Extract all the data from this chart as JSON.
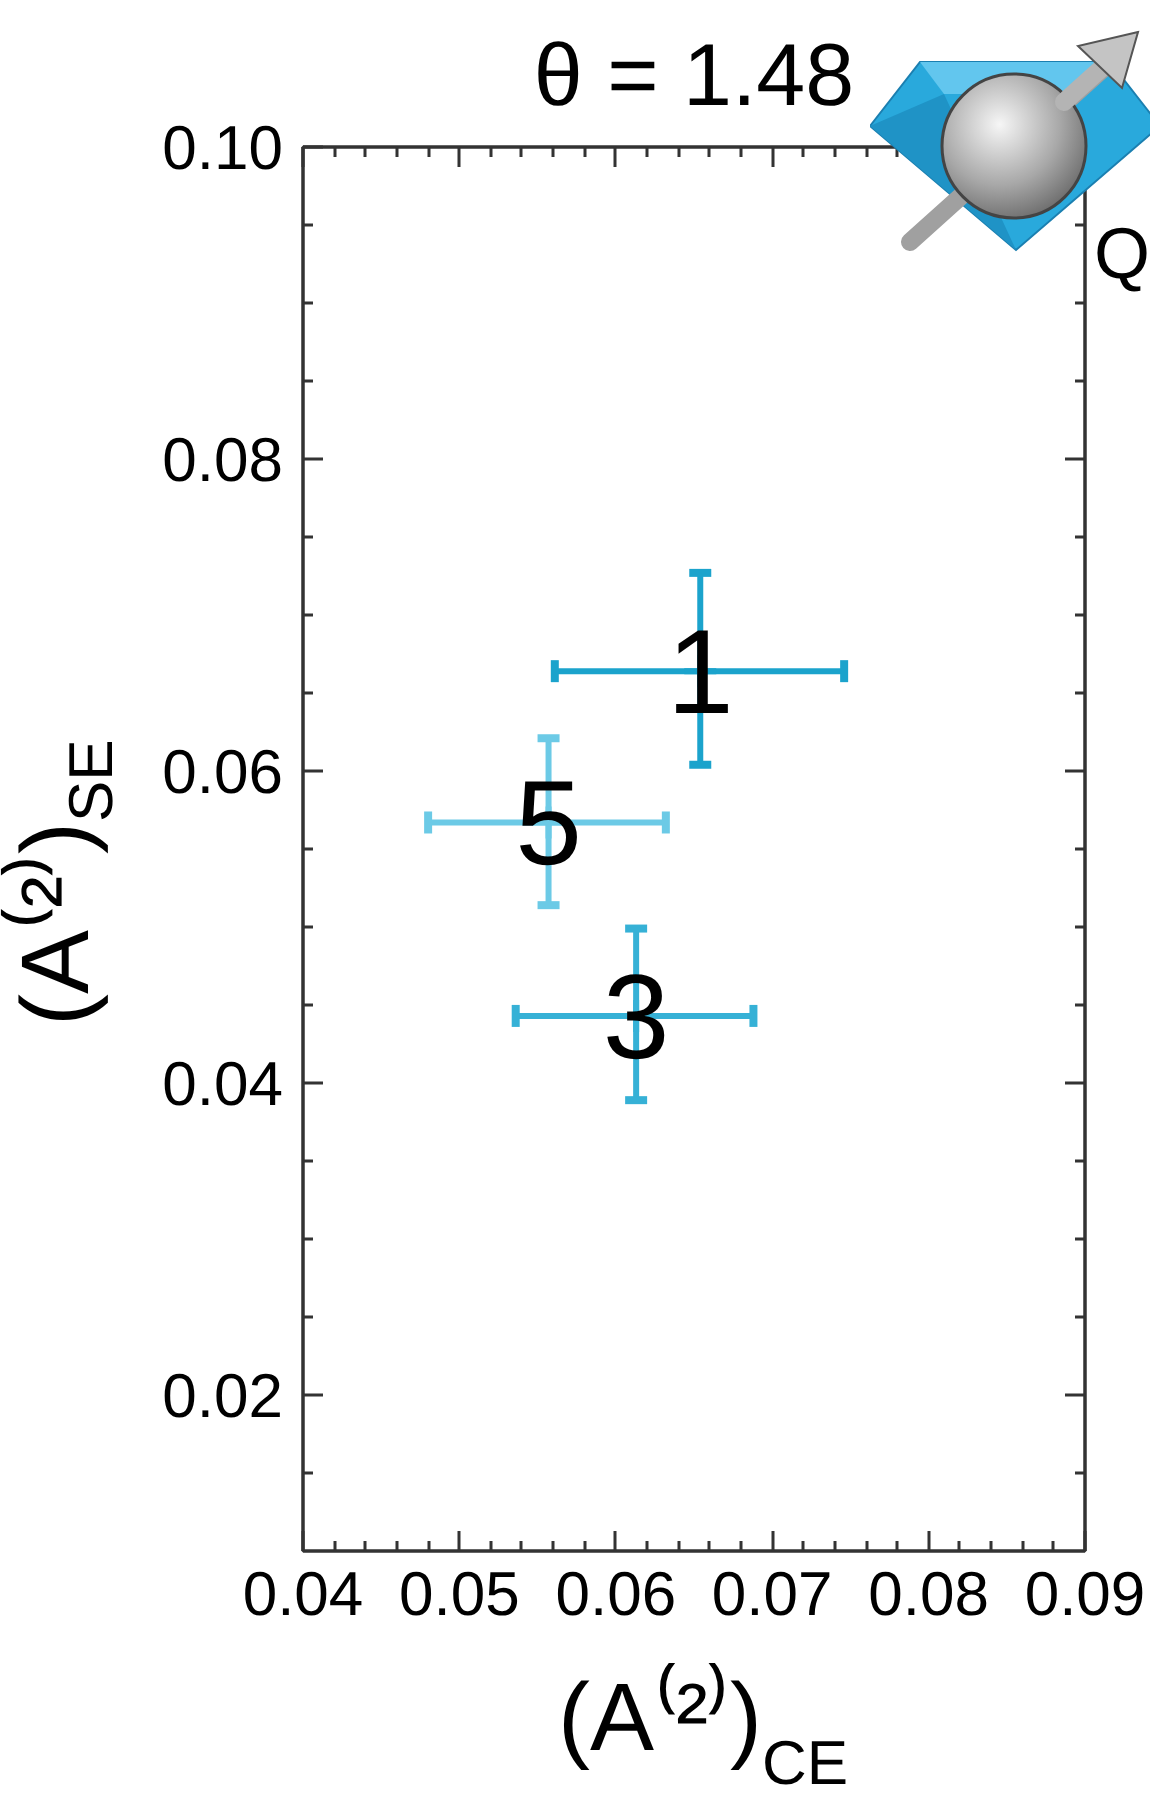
{
  "chart_data": {
    "type": "scatter",
    "title": "θ = 1.48",
    "xlabel": "(A⁽²⁾)$_{CE}$",
    "ylabel": "(A⁽²⁾)$_{SE}$",
    "annotations": [
      "Q"
    ],
    "xlim": [
      0.04,
      0.09
    ],
    "ylim": [
      0.01,
      0.1
    ],
    "xticks": [
      0.04,
      {
        "value": 0.042,
        "label": null
      },
      {
        "value": 0.044,
        "label": null
      },
      {
        "value": 0.046,
        "label": null
      },
      {
        "value": 0.048,
        "label": null
      },
      0.05,
      {
        "value": 0.052,
        "label": null
      },
      {
        "value": 0.054,
        "label": null
      },
      {
        "value": 0.056,
        "label": null
      },
      {
        "value": 0.058,
        "label": null
      },
      0.06,
      {
        "value": 0.062,
        "label": null
      },
      {
        "value": 0.064,
        "label": null
      },
      {
        "value": 0.066,
        "label": null
      },
      {
        "value": 0.068,
        "label": null
      },
      0.07,
      {
        "value": 0.072,
        "label": null
      },
      {
        "value": 0.074,
        "label": null
      },
      {
        "value": 0.076,
        "label": null
      },
      {
        "value": 0.078,
        "label": null
      },
      0.08,
      {
        "value": 0.082,
        "label": null
      },
      {
        "value": 0.084,
        "label": null
      },
      {
        "value": 0.086,
        "label": null
      },
      {
        "value": 0.088,
        "label": null
      },
      0.09
    ],
    "yticks": [
      {
        "value": 0.015,
        "label": null
      },
      0.02,
      {
        "value": 0.025,
        "label": null
      },
      {
        "value": 0.03,
        "label": null
      },
      {
        "value": 0.035,
        "label": null
      },
      0.04,
      {
        "value": 0.045,
        "label": null
      },
      {
        "value": 0.05,
        "label": null
      },
      {
        "value": 0.055,
        "label": null
      },
      0.06,
      {
        "value": 0.065,
        "label": null
      },
      {
        "value": 0.07,
        "label": null
      },
      {
        "value": 0.075,
        "label": null
      },
      0.08,
      {
        "value": 0.085,
        "label": null
      },
      {
        "value": 0.09,
        "label": null
      },
      {
        "value": 0.095,
        "label": null
      },
      {
        "value": 0.1,
        "label": "0.10"
      }
    ],
    "grid": false,
    "marker": "cross",
    "series": [
      {
        "name": "1",
        "color": "#1ba3cc",
        "x": [
          0.0654
        ],
        "values": [
          0.0664
        ],
        "errors": [
          [
            0.0604,
            0.0727
          ]
        ],
        "xerrors": [
          [
            0.0561,
            0.0746
          ]
        ]
      },
      {
        "name": "5",
        "color": "#6ccae6",
        "x": [
          0.0557
        ],
        "values": [
          0.0567
        ],
        "errors": [
          [
            0.0514,
            0.0621
          ]
        ],
        "xerrors": [
          [
            0.048,
            0.0632
          ]
        ]
      },
      {
        "name": "3",
        "color": "#36b1d6",
        "x": [
          0.0613
        ],
        "values": [
          0.0443
        ],
        "errors": [
          [
            0.0389,
            0.0499
          ]
        ],
        "xerrors": [
          [
            0.0536,
            0.0688
          ]
        ]
      }
    ]
  }
}
